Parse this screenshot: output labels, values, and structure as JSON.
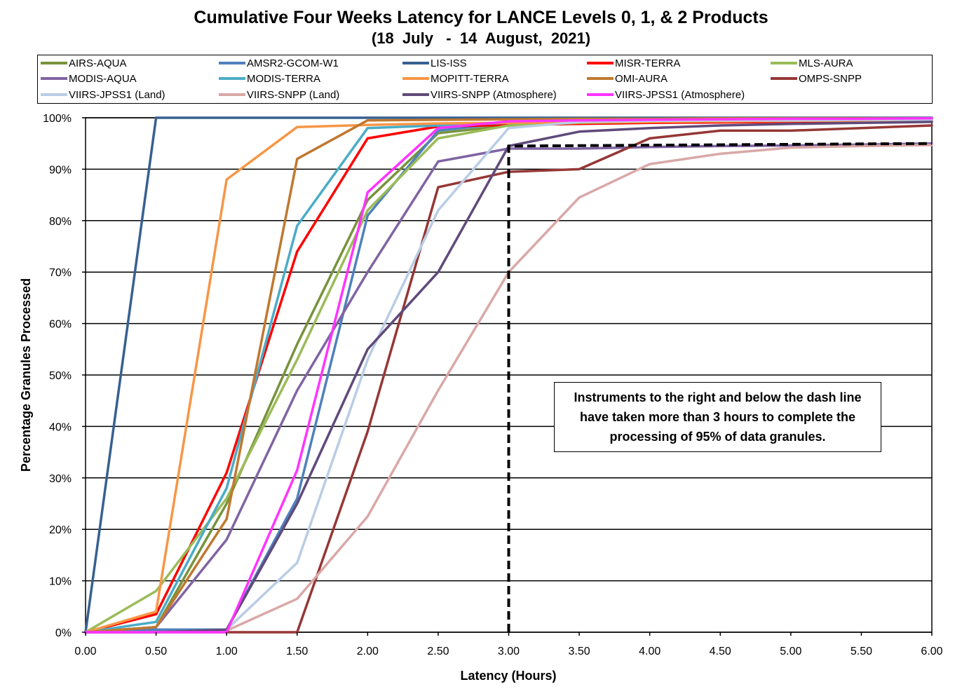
{
  "chart_data": {
    "type": "line",
    "title": "Cumulative Four Weeks Latency  for LANCE Levels 0, 1, & 2 Products",
    "subtitle": "(18  July   -  14  August,  2021)",
    "xlabel": "Latency (Hours)",
    "ylabel": "Percentage Granules Processed",
    "x": [
      0,
      0.5,
      1.0,
      1.5,
      2.0,
      2.5,
      3.0,
      3.5,
      4.0,
      4.5,
      5.0,
      5.5,
      6.0
    ],
    "x_tick_labels": [
      "0.00",
      "0.50",
      "1.00",
      "1.50",
      "2.00",
      "2.50",
      "3.00",
      "3.50",
      "4.00",
      "4.50",
      "5.00",
      "5.50",
      "6.00"
    ],
    "y_tick_labels": [
      "0%",
      "10%",
      "20%",
      "30%",
      "40%",
      "50%",
      "60%",
      "70%",
      "80%",
      "90%",
      "100%"
    ],
    "xlim": [
      0,
      6
    ],
    "ylim": [
      0,
      100
    ],
    "grid": "horizontal",
    "legend_position": "top",
    "series": [
      {
        "name": "AIRS-AQUA",
        "color": "#77933C",
        "values": [
          0,
          1,
          25,
          56,
          84,
          97,
          98.5,
          99,
          99.2,
          99.3,
          99.4,
          99.5,
          99.5
        ]
      },
      {
        "name": "AMSR2-GCOM-W1",
        "color": "#4F81BD",
        "values": [
          0,
          0.5,
          0.5,
          26,
          81,
          97.5,
          99,
          99.2,
          99.3,
          99.4,
          99.5,
          99.5,
          99.5
        ]
      },
      {
        "name": "LIS-ISS",
        "color": "#376092",
        "values": [
          0,
          100,
          100,
          100,
          100,
          100,
          100,
          100,
          100,
          100,
          100,
          100,
          100
        ]
      },
      {
        "name": "MISR-TERRA",
        "color": "#FF0000",
        "values": [
          0,
          3.5,
          31,
          74,
          96,
          98.3,
          98.6,
          98.8,
          99,
          99.1,
          99.2,
          99.2,
          99.3
        ]
      },
      {
        "name": "MLS-AURA",
        "color": "#9BBB59",
        "values": [
          0,
          8,
          26,
          53,
          82,
          96,
          98.5,
          99,
          99.2,
          99.3,
          99.4,
          99.5,
          99.5
        ]
      },
      {
        "name": "MODIS-AQUA",
        "color": "#8064A2",
        "values": [
          0,
          1,
          18,
          47,
          70,
          91.5,
          94,
          94,
          94.3,
          94.5,
          94.6,
          94.8,
          95
        ]
      },
      {
        "name": "MODIS-TERRA",
        "color": "#4BACC6",
        "values": [
          0,
          2,
          28,
          79,
          98,
          98.5,
          99,
          99.2,
          99.3,
          99.4,
          99.5,
          99.5,
          99.6
        ]
      },
      {
        "name": "MOPITT-TERRA",
        "color": "#F79646",
        "values": [
          0,
          4,
          88,
          98.2,
          98.6,
          98.9,
          99,
          99.1,
          99.2,
          99.3,
          99.4,
          99.5,
          99.5
        ]
      },
      {
        "name": "OMI-AURA",
        "color": "#C0782F",
        "values": [
          0,
          1,
          22,
          92,
          99.5,
          99.6,
          99.7,
          99.8,
          99.8,
          99.9,
          99.9,
          99.9,
          99.9
        ]
      },
      {
        "name": "OMPS-SNPP",
        "color": "#953735",
        "values": [
          0,
          0,
          0,
          0,
          39,
          86.5,
          89.5,
          90,
          96,
          97.5,
          97.5,
          98,
          98.5
        ]
      },
      {
        "name": "VIIRS-JPSS1 (Land)",
        "color": "#B9CDE5",
        "values": [
          0,
          0,
          0.5,
          13.5,
          53,
          82,
          98,
          99.2,
          99.4,
          99.5,
          99.5,
          99.6,
          99.6
        ]
      },
      {
        "name": "VIIRS-SNPP (Land)",
        "color": "#D9A8A7",
        "values": [
          0,
          0,
          0.3,
          6.5,
          22.5,
          47,
          70,
          84.5,
          91,
          93,
          94.2,
          94.5,
          94.7
        ]
      },
      {
        "name": "VIIRS-SNPP (Atmosphere)",
        "color": "#604A7B",
        "values": [
          0,
          0,
          0.5,
          25,
          55,
          70,
          94.5,
          97.3,
          98,
          98.5,
          98.8,
          99,
          99.2
        ]
      },
      {
        "name": "VIIRS-JPSS1 (Atmosphere)",
        "color": "#FF33FF",
        "values": [
          0,
          0,
          0,
          31.5,
          85.5,
          98,
          99.3,
          99.5,
          99.6,
          99.7,
          99.8,
          99.8,
          99.9
        ]
      }
    ],
    "threshold_line": {
      "style": "dashed",
      "color": "#000000",
      "points": [
        [
          3.0,
          0
        ],
        [
          3.0,
          94.5
        ],
        [
          6.0,
          95
        ]
      ]
    },
    "annotation": "Instruments to the right and below the dash line have taken more than 3 hours to complete the processing of 95% of data granules."
  }
}
